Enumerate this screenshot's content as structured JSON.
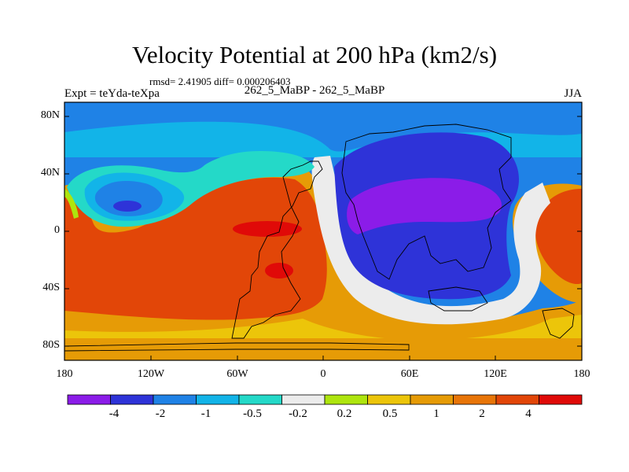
{
  "title": "Velocity Potential at 200 hPa (km2/s)",
  "stats": "rmsd= 2.41905 diff= 0.000206403",
  "left_label": "Expt = teYda-teXpa",
  "center_label": "262_5_MaBP - 262_5_MaBP",
  "right_label": "JJA",
  "lat_ticks": [
    "80N",
    "40N",
    "0",
    "40S",
    "80S"
  ],
  "lon_ticks": [
    "180",
    "120W",
    "60W",
    "0",
    "60E",
    "120E",
    "180"
  ],
  "colorbar": {
    "colors": [
      "#8b1ce8",
      "#2e33d8",
      "#1f82e6",
      "#12b4e8",
      "#24d9c8",
      "#ececec",
      "#aee50e",
      "#ecc50a",
      "#e69b06",
      "#e87508",
      "#e24608",
      "#e00a08"
    ],
    "labels": [
      "-4",
      "-2",
      "-1",
      "-0.5",
      "-0.2",
      "0.2",
      "0.5",
      "1",
      "2",
      "4"
    ]
  },
  "map_colors": {
    "ocean_base": "#1f82e6",
    "land_outline": "#000000"
  }
}
